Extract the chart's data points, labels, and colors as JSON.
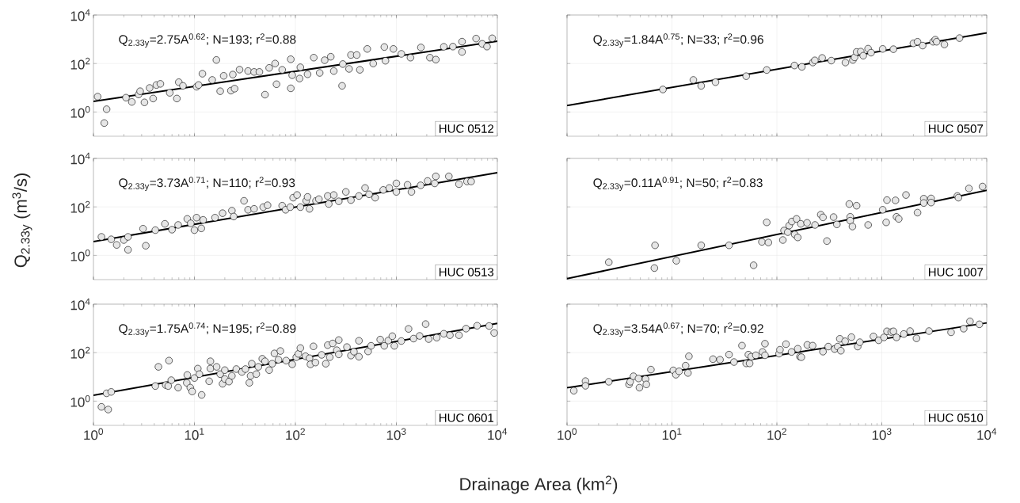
{
  "chart_data": [
    {
      "type": "scatter",
      "log": "xy",
      "grid": true,
      "tick_labels": "y",
      "xlim": [
        1,
        10000
      ],
      "ylim": [
        0.1,
        10000
      ],
      "xticks": [
        {
          "value": 1,
          "label": null
        },
        {
          "value": 10,
          "label": null
        },
        {
          "value": 100,
          "label": null
        },
        {
          "value": 1000,
          "label": null
        },
        {
          "value": 10000,
          "label": null
        }
      ],
      "yticks": [
        {
          "value": 1,
          "label": "10$^{0}$"
        },
        {
          "value": 100,
          "label": "10$^{2}$"
        },
        {
          "value": 10000,
          "label": "10$^{4}$"
        }
      ],
      "annotations": [
        "Q$_{2.33y}$=2.75A$^{0.62}$; N=193; r$^{2}$=0.88",
        "HUC 0512"
      ],
      "series": [
        {
          "marker": "circle",
          "color": "#e6e6e6",
          "x": [
            1.1,
            1.35,
            1.28,
            2.1,
            2.4,
            2.8,
            2.9,
            3.2,
            3.6,
            3.9,
            4.2,
            4.6,
            5.7,
            6.7,
            7.0,
            7.7,
            10.5,
            11,
            12,
            16.5,
            15,
            18,
            19.5,
            23,
            25,
            24,
            28,
            34,
            39,
            44,
            50,
            55,
            63,
            65,
            74,
            90,
            90,
            93,
            110,
            112,
            132,
            152,
            174,
            195,
            224,
            240,
            290,
            295,
            340,
            355,
            405,
            435,
            515,
            590,
            760,
            780,
            935,
            1120,
            1380,
            1750,
            2150,
            2460,
            2950,
            3630,
            4470,
            4470,
            6160,
            7080,
            8900,
            7900
          ],
          "values": [
            4.3,
            1.3,
            0.35,
            3.9,
            2.6,
            5.3,
            7.2,
            2.5,
            9.8,
            3.6,
            13,
            14.5,
            6.2,
            3.6,
            17,
            12,
            11,
            13,
            38,
            140,
            21,
            7.2,
            31,
            7.6,
            9.2,
            35,
            56,
            49,
            45,
            45,
            5.2,
            66,
            100,
            14,
            55,
            150,
            9.5,
            33,
            24,
            70,
            36,
            175,
            41,
            137,
            190,
            49,
            12,
            95,
            60,
            225,
            225,
            55,
            400,
            100,
            480,
            130,
            400,
            250,
            175,
            460,
            175,
            145,
            490,
            500,
            300,
            800,
            1070,
            650,
            1100,
            500
          ]
        },
        {
          "type": "line",
          "marker": "none",
          "color": "#000000",
          "x": [
            1,
            10000
          ],
          "values": [
            2.75,
            830
          ]
        }
      ]
    },
    {
      "type": "scatter",
      "log": "xy",
      "grid": true,
      "tick_labels": false,
      "xlim": [
        1,
        10000
      ],
      "ylim": [
        0.1,
        10000
      ],
      "xticks": [
        {
          "value": 1,
          "label": null
        },
        {
          "value": 10,
          "label": null
        },
        {
          "value": 100,
          "label": null
        },
        {
          "value": 1000,
          "label": null
        },
        {
          "value": 10000,
          "label": null
        }
      ],
      "yticks": [
        {
          "value": 1,
          "label": null
        },
        {
          "value": 100,
          "label": null
        },
        {
          "value": 10000,
          "label": null
        }
      ],
      "annotations": [
        "Q$_{2.33y}$=1.84A$^{0.75}$; N=33; r$^{2}$=0.96",
        "HUC 0507"
      ],
      "series": [
        {
          "marker": "circle",
          "color": "#e6e6e6",
          "x": [
            8.2,
            16,
            19,
            26,
            51,
            80,
            147,
            173,
            220,
            230,
            270,
            330,
            450,
            530,
            550,
            575,
            630,
            665,
            740,
            790,
            1020,
            1290,
            2000,
            2190,
            2450,
            3080,
            3230,
            3330,
            3950,
            5500
          ],
          "values": [
            8.5,
            21,
            12,
            17,
            30,
            54,
            83,
            73,
            110,
            135,
            170,
            132,
            110,
            140,
            180,
            300,
            310,
            210,
            410,
            280,
            400,
            390,
            680,
            790,
            550,
            790,
            960,
            790,
            610,
            1120
          ]
        },
        {
          "type": "line",
          "marker": "none",
          "color": "#000000",
          "x": [
            1,
            10000
          ],
          "values": [
            1.84,
            1840
          ]
        }
      ]
    },
    {
      "type": "scatter",
      "log": "xy",
      "grid": true,
      "tick_labels": "y",
      "xlim": [
        1,
        10000
      ],
      "ylim": [
        0.1,
        10000
      ],
      "ylabel": "Q$_{2.33y}$ (m$^{3}$/s)",
      "xticks": [
        {
          "value": 1,
          "label": null
        },
        {
          "value": 10,
          "label": null
        },
        {
          "value": 100,
          "label": null
        },
        {
          "value": 1000,
          "label": null
        },
        {
          "value": 10000,
          "label": null
        }
      ],
      "yticks": [
        {
          "value": 1,
          "label": "10$^{0}$"
        },
        {
          "value": 100,
          "label": "10$^{2}$"
        },
        {
          "value": 10000,
          "label": "10$^{4}$"
        }
      ],
      "annotations": [
        "Q$_{2.33y}$=3.73A$^{0.71}$; N=110; r$^{2}$=0.93",
        "HUC 0513"
      ],
      "series": [
        {
          "marker": "circle",
          "color": "#e6e6e6",
          "x": [
            1.2,
            1.5,
            1.7,
            2.0,
            2.2,
            2.2,
            3.1,
            3.3,
            4.1,
            5.1,
            6.0,
            6.9,
            8.5,
            9.2,
            10,
            10.5,
            11.7,
            12.2,
            16,
            19,
            23.5,
            24.5,
            31,
            34,
            39,
            48,
            53,
            74,
            80,
            89,
            95,
            104,
            112,
            128,
            132,
            138,
            160,
            171,
            209,
            214,
            240,
            269,
            316,
            355,
            426,
            490,
            537,
            617,
            741,
            851,
            1000,
            1000,
            1290,
            1410,
            1740,
            2040,
            2400,
            2460,
            3310,
            4170,
            5010,
            5500
          ],
          "values": [
            5.8,
            4.6,
            2.7,
            4.3,
            5.8,
            1.7,
            12.6,
            2.5,
            11,
            20,
            11.5,
            18,
            32,
            21,
            11,
            36,
            13,
            29,
            36,
            55,
            70,
            40,
            178,
            76,
            83,
            98,
            117,
            112,
            76,
            98,
            240,
            310,
            98,
            178,
            257,
            83,
            178,
            209,
            282,
            132,
            310,
            170,
            417,
            191,
            282,
            603,
            331,
            240,
            501,
            603,
            933,
            417,
            813,
            417,
            776,
            1175,
            933,
            1820,
            1820,
            871,
            1120,
            1120
          ]
        },
        {
          "type": "line",
          "marker": "none",
          "color": "#000000",
          "x": [
            1,
            10000
          ],
          "values": [
            3.73,
            2580
          ]
        }
      ]
    },
    {
      "type": "scatter",
      "log": "xy",
      "grid": true,
      "tick_labels": false,
      "xlim": [
        1,
        10000
      ],
      "ylim": [
        0.1,
        10000
      ],
      "xticks": [
        {
          "value": 1,
          "label": null
        },
        {
          "value": 10,
          "label": null
        },
        {
          "value": 100,
          "label": null
        },
        {
          "value": 1000,
          "label": null
        },
        {
          "value": 10000,
          "label": null
        }
      ],
      "yticks": [
        {
          "value": 1,
          "label": null
        },
        {
          "value": 100,
          "label": null
        },
        {
          "value": 10000,
          "label": null
        }
      ],
      "annotations": [
        "Q$_{2.33y}$=0.11A$^{0.91}$; N=50; r$^{2}$=0.83",
        "HUC 1007"
      ],
      "series": [
        {
          "marker": "circle",
          "color": "#e6e6e6",
          "x": [
            2.5,
            6.8,
            6.9,
            11,
            19,
            35,
            60,
            72,
            80,
            83,
            114,
            117,
            127,
            131,
            139,
            148,
            154,
            158,
            169,
            194,
            231,
            262,
            275,
            300,
            347,
            373,
            490,
            500,
            500,
            525,
            575,
            741,
            1020,
            1100,
            1120,
            1350,
            1380,
            1450,
            1700,
            2190,
            2510,
            2510,
            2950,
            2950,
            5250,
            5370,
            6760,
            9120
          ],
          "values": [
            0.52,
            0.3,
            2.6,
            0.6,
            2.6,
            2.6,
            0.39,
            3.6,
            23,
            3.4,
            4.3,
            10.6,
            9.1,
            17,
            25,
            7.3,
            32,
            5.5,
            20,
            22,
            18,
            48,
            37,
            3.9,
            38,
            19,
            131,
            39,
            27,
            15.5,
            112,
            18,
            76,
            23,
            191,
            186,
            39,
            32,
            310,
            58,
            219,
            145,
            224,
            151,
            282,
            240,
            575,
            692
          ]
        },
        {
          "type": "line",
          "marker": "none",
          "color": "#000000",
          "x": [
            1,
            10000
          ],
          "values": [
            0.11,
            480
          ]
        }
      ]
    },
    {
      "type": "scatter",
      "log": "xy",
      "grid": true,
      "xlim": [
        1,
        10000
      ],
      "ylim": [
        0.1,
        10000
      ],
      "xlabel": "Drainage Area (km$^{2}$)",
      "xticks": [
        {
          "value": 1,
          "label": "10$^{0}$"
        },
        {
          "value": 10,
          "label": "10$^{1}$"
        },
        {
          "value": 100,
          "label": "10$^{2}$"
        },
        {
          "value": 1000,
          "label": "10$^{3}$"
        },
        {
          "value": 10000,
          "label": "10$^{4}$"
        }
      ],
      "yticks": [
        {
          "value": 1,
          "label": "10$^{0}$"
        },
        {
          "value": 100,
          "label": "10$^{2}$"
        },
        {
          "value": 10000,
          "label": "10$^{4}$"
        }
      ],
      "annotations": [
        "Q$_{2.33y}$=1.75A$^{0.74}$; N=195; r$^{2}$=0.89",
        "HUC 0601"
      ],
      "series": [
        {
          "marker": "circle",
          "color": "#e6e6e6",
          "x": [
            1.2,
            1.4,
            1.35,
            1.5,
            4.1,
            4.4,
            5.2,
            5.6,
            5.5,
            5.9,
            6.9,
            8.5,
            8.4,
            9.1,
            9.5,
            10,
            10.8,
            11.2,
            11.8,
            14,
            14.4,
            14.4,
            16.6,
            18,
            19,
            20,
            20,
            22,
            23.5,
            26,
            29.5,
            32,
            35,
            36,
            37,
            41,
            43,
            47,
            50,
            55,
            59,
            62,
            68,
            71,
            81,
            93,
            102,
            107,
            112,
            126,
            138,
            141,
            158,
            151,
            182,
            200,
            209,
            219,
            234,
            257,
            269,
            269,
            324,
            355,
            380,
            426,
            426,
            525,
            562,
            692,
            759,
            832,
            912,
            955,
            1120,
            1320,
            1480,
            1700,
            1950,
            2090,
            2510,
            2950,
            3390,
            4170,
            4900,
            6310,
            8300,
            9300
          ],
          "values": [
            0.58,
            0.45,
            2.1,
            2.4,
            4.2,
            26,
            4.6,
            47,
            4.2,
            7.3,
            3.6,
            12,
            5.7,
            3.6,
            2.5,
            9.0,
            22,
            13,
            1.8,
            6.6,
            44,
            22,
            26,
            13,
            5.2,
            8.2,
            19,
            6.4,
            11,
            21,
            16,
            21,
            5.7,
            11,
            35,
            13,
            26,
            56,
            44,
            19,
            35,
            93,
            51,
            117,
            47,
            33,
            65,
            89,
            155,
            71,
            59,
            33,
            39,
            182,
            81,
            35,
            204,
            65,
            240,
            126,
            85,
            331,
            170,
            76,
            110,
            68,
            309,
            112,
            191,
            347,
            191,
            316,
            479,
            191,
            302,
            955,
            380,
            490,
            1510,
            363,
            417,
            603,
            525,
            525,
            977,
            1290,
            1260,
            650
          ]
        },
        {
          "type": "line",
          "marker": "none",
          "color": "#000000",
          "x": [
            1,
            10000
          ],
          "values": [
            1.75,
            1600
          ]
        }
      ]
    },
    {
      "type": "scatter",
      "log": "xy",
      "grid": true,
      "tick_labels": "x",
      "xlim": [
        1,
        10000
      ],
      "ylim": [
        0.1,
        10000
      ],
      "xticks": [
        {
          "value": 1,
          "label": "10$^{0}$"
        },
        {
          "value": 10,
          "label": "10$^{1}$"
        },
        {
          "value": 100,
          "label": "10$^{2}$"
        },
        {
          "value": 1000,
          "label": "10$^{3}$"
        },
        {
          "value": 10000,
          "label": "10$^{4}$"
        }
      ],
      "yticks": [
        {
          "value": 1,
          "label": null
        },
        {
          "value": 100,
          "label": null
        },
        {
          "value": 10000,
          "label": null
        }
      ],
      "annotations": [
        "Q$_{2.33y}$=3.54A$^{0.67}$; N=70; r$^{2}$=0.92",
        "HUC 0510"
      ],
      "series": [
        {
          "marker": "circle",
          "color": "#e6e6e6",
          "x": [
            1.16,
            1.5,
            1.5,
            2.5,
            3.9,
            4.0,
            4.3,
            4.8,
            4.9,
            5.6,
            5.7,
            6.3,
            10.3,
            10.9,
            11.7,
            13.5,
            14.2,
            14.5,
            24.6,
            28.7,
            35,
            39,
            46.5,
            51,
            53.5,
            55,
            57,
            63,
            73,
            77,
            77,
            105,
            107,
            122,
            138,
            158,
            166,
            171,
            195,
            219,
            275,
            309,
            355,
            380,
            398,
            407,
            447,
            513,
            589,
            617,
            832,
            933,
            1050,
            1120,
            1230,
            1290,
            1380,
            1620,
            1860,
            2140,
            2820,
            4570,
            6030,
            6920,
            8510
          ],
          "values": [
            2.7,
            6.7,
            4.3,
            6.3,
            4.9,
            6.3,
            10.6,
            8.6,
            3.6,
            8.1,
            4.9,
            20,
            18.6,
            12.3,
            17,
            29,
            14.5,
            71,
            54,
            51,
            83,
            41,
            195,
            36,
            83,
            36,
            68,
            78,
            107,
            234,
            78,
            91,
            132,
            224,
            107,
            145,
            68,
            65,
            209,
            195,
            110,
            178,
            141,
            178,
            372,
            120,
            295,
            437,
            178,
            269,
            468,
            324,
            427,
            759,
            708,
            759,
            427,
            589,
            776,
            389,
            776,
            692,
            977,
            1950,
            1480
          ]
        },
        {
          "type": "line",
          "marker": "none",
          "color": "#000000",
          "x": [
            1,
            10000
          ],
          "values": [
            3.54,
            1690
          ]
        }
      ]
    }
  ]
}
